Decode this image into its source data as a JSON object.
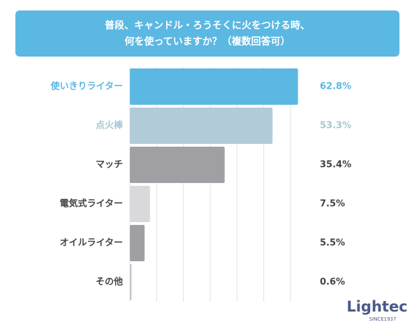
{
  "chart_data": {
    "type": "bar",
    "orientation": "horizontal",
    "title": [
      "普段、キャンドル・ろうそくに火をつける時、",
      "何を使っていますか？（複数回答可）"
    ],
    "categories": [
      "使いきりライター",
      "点火棒",
      "マッチ",
      "電気式ライター",
      "オイルライター",
      "その他"
    ],
    "values": [
      62.8,
      53.3,
      35.4,
      7.5,
      5.5,
      0.6
    ],
    "value_labels": [
      "62.8%",
      "53.3%",
      "35.4%",
      "7.5%",
      "5.5%",
      "0.6%"
    ],
    "colors": [
      "#5bb8e2",
      "#b2cbd8",
      "#a09fa4",
      "#d9d9db",
      "#a09fa4",
      "#c4c4c6"
    ],
    "label_colors": [
      "#5bb8e2",
      "#a9c6d4",
      "#444444",
      "#444444",
      "#444444",
      "#444444"
    ],
    "xlim": [
      0,
      63
    ],
    "xticks": [
      0,
      10,
      20,
      30,
      40,
      50,
      60
    ],
    "grid": true,
    "logo": {
      "name": "Lightec",
      "since": "SINCE1937"
    }
  }
}
